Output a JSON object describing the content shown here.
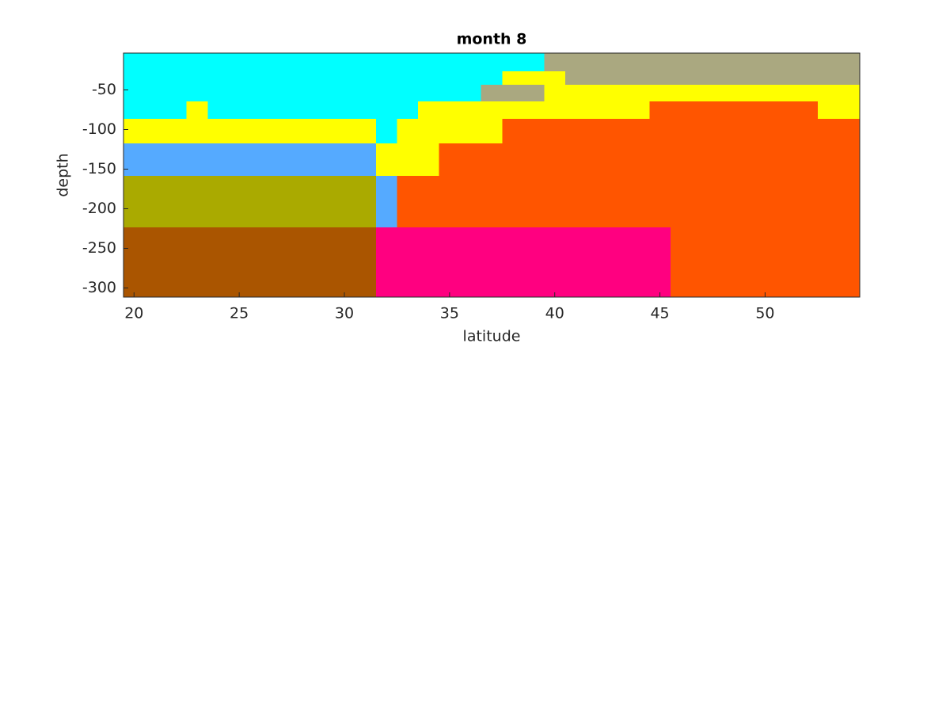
{
  "chart_data": {
    "type": "heatmap",
    "title": "month 8",
    "x_label": "latitude",
    "y_label": "depth",
    "xlim": [
      19.5,
      54.5
    ],
    "ylim": [
      -311.5,
      -3.5
    ],
    "xticks": [
      20,
      25,
      30,
      35,
      40,
      45,
      50
    ],
    "yticks": [
      -300,
      -250,
      -200,
      -150,
      -100,
      -50
    ],
    "y_edges": [
      -3.5,
      -26.5,
      -43.5,
      -64.5,
      -86.5,
      -117.5,
      -158.5,
      -223.5,
      -311.5
    ],
    "rows": [
      {
        "x_edges": [
          19.5,
          39.5,
          54.5
        ],
        "colors": [
          "#00ffff",
          "#aaa880"
        ]
      },
      {
        "x_edges": [
          19.5,
          37.5,
          40.5,
          54.5
        ],
        "colors": [
          "#00ffff",
          "#ffff00",
          "#aaa880"
        ]
      },
      {
        "x_edges": [
          19.5,
          36.5,
          39.5,
          54.5
        ],
        "colors": [
          "#00ffff",
          "#aaa880",
          "#ffff00"
        ]
      },
      {
        "x_edges": [
          19.5,
          22.5,
          23.5,
          33.5,
          44.5,
          52.5,
          54.5
        ],
        "colors": [
          "#00ffff",
          "#ffff00",
          "#00ffff",
          "#ffff00",
          "#ff5500",
          "#ffff00"
        ]
      },
      {
        "x_edges": [
          19.5,
          31.5,
          32.5,
          37.5,
          54.5
        ],
        "colors": [
          "#ffff00",
          "#00ffff",
          "#ffff00",
          "#ff5500"
        ]
      },
      {
        "x_edges": [
          19.5,
          31.5,
          34.5,
          54.5
        ],
        "colors": [
          "#55aaff",
          "#ffff00",
          "#ff5500"
        ]
      },
      {
        "x_edges": [
          19.5,
          31.5,
          32.5,
          54.5
        ],
        "colors": [
          "#aaaa00",
          "#55aaff",
          "#ff5500"
        ]
      },
      {
        "x_edges": [
          19.5,
          31.5,
          45.5,
          54.5
        ],
        "colors": [
          "#aa5500",
          "#ff0080",
          "#ff5500"
        ]
      }
    ]
  }
}
